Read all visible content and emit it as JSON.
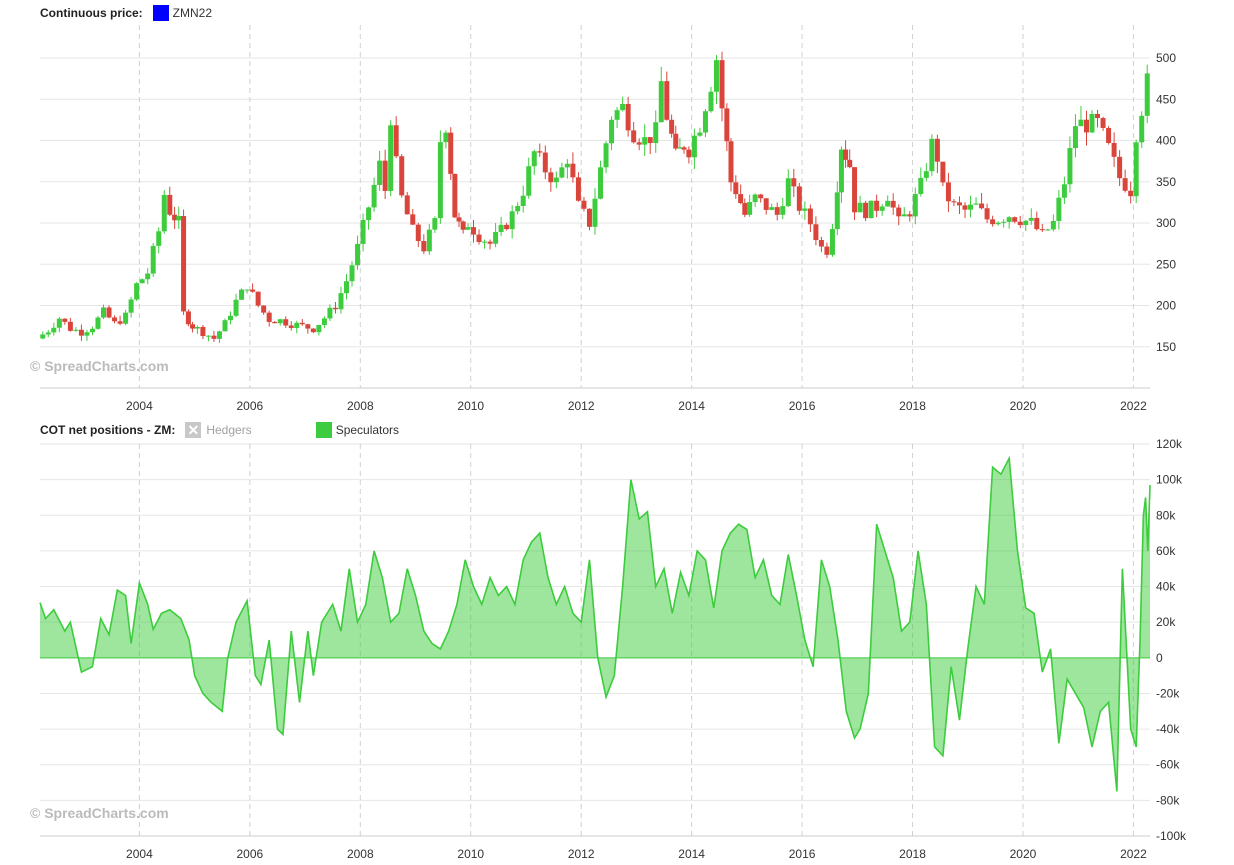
{
  "top_legend": {
    "title": "Continuous price:",
    "series_label": "ZMN22",
    "swatch_color": "#0000ff"
  },
  "bottom_legend": {
    "title": "COT net positions - ZM:",
    "hedgers_label": "Hedgers",
    "speculators_label": "Speculators",
    "speculators_color": "#3dcc3d"
  },
  "watermark": "© SpreadCharts.com",
  "chart_data": [
    {
      "type": "candlestick",
      "title": "Continuous price:",
      "series": [
        {
          "name": "ZMN22"
        }
      ],
      "xlim": [
        2002.2,
        2022.3
      ],
      "ylim": [
        100,
        540
      ],
      "x_ticks": [
        "2004",
        "2006",
        "2008",
        "2010",
        "2012",
        "2014",
        "2016",
        "2018",
        "2020",
        "2022"
      ],
      "y_ticks": [
        150,
        200,
        250,
        300,
        350,
        400,
        450,
        500
      ],
      "up_color": "#3dcc3d",
      "down_color": "#d9453b",
      "closes": [
        [
          2002.2,
          160
        ],
        [
          2002.4,
          170
        ],
        [
          2002.6,
          185
        ],
        [
          2002.8,
          172
        ],
        [
          2003.0,
          168
        ],
        [
          2003.2,
          175
        ],
        [
          2003.4,
          192
        ],
        [
          2003.6,
          178
        ],
        [
          2003.8,
          187
        ],
        [
          2004.0,
          225
        ],
        [
          2004.2,
          240
        ],
        [
          2004.4,
          290
        ],
        [
          2004.5,
          335
        ],
        [
          2004.6,
          315
        ],
        [
          2004.75,
          300
        ],
        [
          2004.85,
          190
        ],
        [
          2005.0,
          175
        ],
        [
          2005.2,
          168
        ],
        [
          2005.4,
          160
        ],
        [
          2005.6,
          178
        ],
        [
          2005.8,
          205
        ],
        [
          2006.0,
          225
        ],
        [
          2006.2,
          200
        ],
        [
          2006.4,
          183
        ],
        [
          2006.6,
          182
        ],
        [
          2006.8,
          178
        ],
        [
          2007.0,
          175
        ],
        [
          2007.2,
          172
        ],
        [
          2007.4,
          185
        ],
        [
          2007.6,
          200
        ],
        [
          2007.8,
          230
        ],
        [
          2008.0,
          270
        ],
        [
          2008.2,
          320
        ],
        [
          2008.4,
          370
        ],
        [
          2008.5,
          340
        ],
        [
          2008.6,
          430
        ],
        [
          2008.7,
          370
        ],
        [
          2008.8,
          330
        ],
        [
          2009.0,
          290
        ],
        [
          2009.2,
          270
        ],
        [
          2009.4,
          300
        ],
        [
          2009.5,
          400
        ],
        [
          2009.6,
          420
        ],
        [
          2009.75,
          310
        ],
        [
          2009.9,
          285
        ],
        [
          2010.0,
          300
        ],
        [
          2010.2,
          285
        ],
        [
          2010.4,
          275
        ],
        [
          2010.6,
          290
        ],
        [
          2010.8,
          310
        ],
        [
          2011.0,
          340
        ],
        [
          2011.2,
          385
        ],
        [
          2011.4,
          365
        ],
        [
          2011.6,
          350
        ],
        [
          2011.8,
          380
        ],
        [
          2012.0,
          320
        ],
        [
          2012.2,
          300
        ],
        [
          2012.4,
          365
        ],
        [
          2012.6,
          430
        ],
        [
          2012.8,
          440
        ],
        [
          2013.0,
          410
        ],
        [
          2013.2,
          400
        ],
        [
          2013.4,
          410
        ],
        [
          2013.5,
          470
        ],
        [
          2013.6,
          430
        ],
        [
          2013.75,
          380
        ],
        [
          2013.9,
          395
        ],
        [
          2014.0,
          390
        ],
        [
          2014.2,
          420
        ],
        [
          2014.4,
          470
        ],
        [
          2014.5,
          500
        ],
        [
          2014.6,
          440
        ],
        [
          2014.75,
          350
        ],
        [
          2014.85,
          340
        ],
        [
          2015.0,
          310
        ],
        [
          2015.2,
          330
        ],
        [
          2015.4,
          320
        ],
        [
          2015.6,
          310
        ],
        [
          2015.8,
          350
        ],
        [
          2016.0,
          320
        ],
        [
          2016.2,
          300
        ],
        [
          2016.4,
          270
        ],
        [
          2016.5,
          268
        ],
        [
          2016.6,
          300
        ],
        [
          2016.75,
          395
        ],
        [
          2016.9,
          370
        ],
        [
          2017.0,
          320
        ],
        [
          2017.2,
          315
        ],
        [
          2017.4,
          320
        ],
        [
          2017.6,
          335
        ],
        [
          2017.8,
          300
        ],
        [
          2018.0,
          315
        ],
        [
          2018.2,
          345
        ],
        [
          2018.4,
          395
        ],
        [
          2018.5,
          380
        ],
        [
          2018.6,
          340
        ],
        [
          2018.8,
          320
        ],
        [
          2019.0,
          315
        ],
        [
          2019.2,
          320
        ],
        [
          2019.4,
          305
        ],
        [
          2019.6,
          305
        ],
        [
          2019.8,
          310
        ],
        [
          2020.0,
          305
        ],
        [
          2020.2,
          300
        ],
        [
          2020.4,
          285
        ],
        [
          2020.6,
          300
        ],
        [
          2020.8,
          350
        ],
        [
          2021.0,
          420
        ],
        [
          2021.2,
          420
        ],
        [
          2021.4,
          420
        ],
        [
          2021.6,
          390
        ],
        [
          2021.8,
          355
        ],
        [
          2022.0,
          340
        ],
        [
          2022.1,
          410
        ],
        [
          2022.2,
          440
        ],
        [
          2022.3,
          470
        ]
      ]
    },
    {
      "type": "area",
      "title": "COT net positions - ZM:",
      "series": [
        {
          "name": "Hedgers",
          "visible": false
        },
        {
          "name": "Speculators"
        }
      ],
      "xlim": [
        2002.2,
        2022.3
      ],
      "ylim": [
        -100000,
        120000
      ],
      "x_ticks": [
        "2004",
        "2006",
        "2008",
        "2010",
        "2012",
        "2014",
        "2016",
        "2018",
        "2020",
        "2022"
      ],
      "y_ticks": [
        [
          "120k",
          120000
        ],
        [
          "100k",
          100000
        ],
        [
          "80k",
          80000
        ],
        [
          "60k",
          60000
        ],
        [
          "40k",
          40000
        ],
        [
          "20k",
          20000
        ],
        [
          "0",
          0
        ],
        [
          "-20k",
          -20000
        ],
        [
          "-40k",
          -40000
        ],
        [
          "-60k",
          -60000
        ],
        [
          "-80k",
          -80000
        ],
        [
          "-100k",
          -100000
        ]
      ],
      "speculators": [
        [
          2002.2,
          31000
        ],
        [
          2002.3,
          22000
        ],
        [
          2002.45,
          27000
        ],
        [
          2002.65,
          15000
        ],
        [
          2002.75,
          20000
        ],
        [
          2002.95,
          -8000
        ],
        [
          2003.15,
          -5000
        ],
        [
          2003.3,
          22000
        ],
        [
          2003.45,
          13000
        ],
        [
          2003.6,
          38000
        ],
        [
          2003.75,
          35000
        ],
        [
          2003.85,
          8000
        ],
        [
          2004.0,
          42000
        ],
        [
          2004.15,
          30000
        ],
        [
          2004.25,
          16000
        ],
        [
          2004.4,
          25000
        ],
        [
          2004.55,
          27000
        ],
        [
          2004.75,
          22000
        ],
        [
          2004.9,
          10000
        ],
        [
          2005.0,
          -10000
        ],
        [
          2005.15,
          -20000
        ],
        [
          2005.3,
          -25000
        ],
        [
          2005.5,
          -30000
        ],
        [
          2005.6,
          0
        ],
        [
          2005.75,
          20000
        ],
        [
          2005.95,
          32000
        ],
        [
          2006.1,
          -10000
        ],
        [
          2006.2,
          -15000
        ],
        [
          2006.35,
          10000
        ],
        [
          2006.5,
          -40000
        ],
        [
          2006.6,
          -43000
        ],
        [
          2006.75,
          15000
        ],
        [
          2006.9,
          -25000
        ],
        [
          2007.05,
          15000
        ],
        [
          2007.15,
          -10000
        ],
        [
          2007.3,
          20000
        ],
        [
          2007.5,
          30000
        ],
        [
          2007.65,
          15000
        ],
        [
          2007.8,
          50000
        ],
        [
          2007.95,
          20000
        ],
        [
          2008.1,
          30000
        ],
        [
          2008.25,
          60000
        ],
        [
          2008.4,
          45000
        ],
        [
          2008.55,
          20000
        ],
        [
          2008.7,
          25000
        ],
        [
          2008.85,
          50000
        ],
        [
          2009.0,
          35000
        ],
        [
          2009.15,
          15000
        ],
        [
          2009.3,
          8000
        ],
        [
          2009.45,
          5000
        ],
        [
          2009.6,
          15000
        ],
        [
          2009.75,
          30000
        ],
        [
          2009.9,
          55000
        ],
        [
          2010.05,
          40000
        ],
        [
          2010.2,
          30000
        ],
        [
          2010.35,
          45000
        ],
        [
          2010.5,
          35000
        ],
        [
          2010.65,
          40000
        ],
        [
          2010.8,
          30000
        ],
        [
          2010.95,
          55000
        ],
        [
          2011.1,
          65000
        ],
        [
          2011.25,
          70000
        ],
        [
          2011.4,
          45000
        ],
        [
          2011.55,
          30000
        ],
        [
          2011.7,
          40000
        ],
        [
          2011.85,
          25000
        ],
        [
          2012.0,
          20000
        ],
        [
          2012.15,
          55000
        ],
        [
          2012.3,
          0
        ],
        [
          2012.45,
          -22000
        ],
        [
          2012.6,
          -10000
        ],
        [
          2012.75,
          40000
        ],
        [
          2012.9,
          100000
        ],
        [
          2013.05,
          78000
        ],
        [
          2013.2,
          82000
        ],
        [
          2013.35,
          40000
        ],
        [
          2013.5,
          50000
        ],
        [
          2013.65,
          25000
        ],
        [
          2013.8,
          48000
        ],
        [
          2013.95,
          35000
        ],
        [
          2014.1,
          60000
        ],
        [
          2014.25,
          55000
        ],
        [
          2014.4,
          28000
        ],
        [
          2014.55,
          60000
        ],
        [
          2014.7,
          70000
        ],
        [
          2014.85,
          75000
        ],
        [
          2015.0,
          72000
        ],
        [
          2015.15,
          45000
        ],
        [
          2015.3,
          55000
        ],
        [
          2015.45,
          35000
        ],
        [
          2015.6,
          30000
        ],
        [
          2015.75,
          58000
        ],
        [
          2015.9,
          35000
        ],
        [
          2016.05,
          10000
        ],
        [
          2016.2,
          -5000
        ],
        [
          2016.35,
          55000
        ],
        [
          2016.5,
          40000
        ],
        [
          2016.65,
          10000
        ],
        [
          2016.8,
          -30000
        ],
        [
          2016.95,
          -45000
        ],
        [
          2017.05,
          -40000
        ],
        [
          2017.2,
          -20000
        ],
        [
          2017.35,
          75000
        ],
        [
          2017.5,
          60000
        ],
        [
          2017.65,
          45000
        ],
        [
          2017.8,
          15000
        ],
        [
          2017.95,
          20000
        ],
        [
          2018.1,
          60000
        ],
        [
          2018.25,
          30000
        ],
        [
          2018.4,
          -50000
        ],
        [
          2018.55,
          -55000
        ],
        [
          2018.7,
          -5000
        ],
        [
          2018.85,
          -35000
        ],
        [
          2019.0,
          5000
        ],
        [
          2019.15,
          40000
        ],
        [
          2019.3,
          30000
        ],
        [
          2019.45,
          107000
        ],
        [
          2019.6,
          103000
        ],
        [
          2019.75,
          112000
        ],
        [
          2019.9,
          60000
        ],
        [
          2020.05,
          28000
        ],
        [
          2020.2,
          25000
        ],
        [
          2020.35,
          -8000
        ],
        [
          2020.5,
          5000
        ],
        [
          2020.65,
          -48000
        ],
        [
          2020.8,
          -12000
        ],
        [
          2020.95,
          -20000
        ],
        [
          2021.1,
          -28000
        ],
        [
          2021.25,
          -50000
        ],
        [
          2021.4,
          -30000
        ],
        [
          2021.55,
          -25000
        ],
        [
          2021.7,
          -75000
        ],
        [
          2021.8,
          50000
        ],
        [
          2021.95,
          -40000
        ],
        [
          2022.05,
          -50000
        ],
        [
          2022.12,
          10000
        ],
        [
          2022.18,
          80000
        ],
        [
          2022.22,
          90000
        ],
        [
          2022.26,
          60000
        ],
        [
          2022.3,
          97000
        ]
      ]
    }
  ]
}
